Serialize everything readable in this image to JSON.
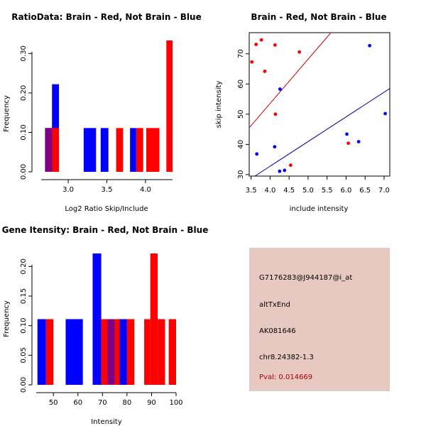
{
  "colors": {
    "red": "#ff0000",
    "blue": "#0000ff",
    "overlap": "#7f0080",
    "fit_red": "#cc0000",
    "fit_blue": "#000099",
    "info_bg": "#e7c9c2",
    "pval": "#aa0000"
  },
  "chart_data": [
    {
      "id": "ratio-hist",
      "type": "bar",
      "title": "RatioData: Brain - Red, Not Brain - Blue",
      "xlabel": "Log2 Ratio Skip/Include",
      "ylabel": "Frequency",
      "xlim": [
        2.65,
        4.35
      ],
      "ylim": [
        0,
        0.333
      ],
      "xticks": [
        "3.0",
        "3.5",
        "4.0"
      ],
      "xtick_values": [
        3.0,
        3.5,
        4.0
      ],
      "yticks": [
        "0.00",
        "0.10",
        "0.20",
        "0.30"
      ],
      "ytick_values": [
        0.0,
        0.1,
        0.2,
        0.3
      ],
      "series": [
        {
          "name": "Not Brain",
          "color": "blue",
          "bars": [
            {
              "x0": 2.7,
              "x1": 2.79,
              "value": 0.111
            },
            {
              "x0": 2.79,
              "x1": 2.88,
              "value": 0.222
            },
            {
              "x0": 3.2,
              "x1": 3.36,
              "value": 0.111
            },
            {
              "x0": 3.42,
              "x1": 3.52,
              "value": 0.111
            },
            {
              "x0": 3.8,
              "x1": 3.88,
              "value": 0.111
            }
          ]
        },
        {
          "name": "Brain",
          "color": "red",
          "bars": [
            {
              "x0": 2.79,
              "x1": 2.88,
              "value": 0.111
            },
            {
              "x0": 3.62,
              "x1": 3.71,
              "value": 0.111
            },
            {
              "x0": 3.88,
              "x1": 3.97,
              "value": 0.111
            },
            {
              "x0": 4.01,
              "x1": 4.18,
              "value": 0.111
            },
            {
              "x0": 4.27,
              "x1": 4.35,
              "value": 0.333
            }
          ]
        }
      ],
      "overlap_bars": [
        {
          "x0": 2.7,
          "x1": 2.79,
          "value": 0.111
        }
      ]
    },
    {
      "id": "scatter",
      "type": "scatter",
      "title": "Brain - Red, Not Brain - Blue",
      "xlabel": "include intensity",
      "ylabel": "skip intensity",
      "xlim": [
        3.45,
        7.15
      ],
      "ylim": [
        29.5,
        77
      ],
      "xticks": [
        "3.5",
        "4.0",
        "4.5",
        "5.0",
        "5.5",
        "6.0",
        "6.5",
        "7.0"
      ],
      "xtick_values": [
        3.5,
        4.0,
        4.5,
        5.0,
        5.5,
        6.0,
        6.5,
        7.0
      ],
      "yticks": [
        "30",
        "40",
        "50",
        "60",
        "70"
      ],
      "ytick_values": [
        30,
        40,
        50,
        60,
        70
      ],
      "series": [
        {
          "name": "Brain",
          "color": "red",
          "points": [
            [
              3.52,
              67.3
            ],
            [
              3.63,
              73.1
            ],
            [
              3.77,
              74.6
            ],
            [
              3.86,
              64.2
            ],
            [
              4.13,
              72.9
            ],
            [
              4.14,
              50.0
            ],
            [
              4.54,
              33.1
            ],
            [
              4.77,
              70.6
            ],
            [
              6.06,
              40.4
            ]
          ],
          "fit": [
            [
              3.45,
              45.5
            ],
            [
              5.6,
              77
            ]
          ]
        },
        {
          "name": "Not Brain",
          "color": "blue",
          "points": [
            [
              3.65,
              36.8
            ],
            [
              4.12,
              39.2
            ],
            [
              4.26,
              58.3
            ],
            [
              4.25,
              31.1
            ],
            [
              4.38,
              31.4
            ],
            [
              6.02,
              43.4
            ],
            [
              6.33,
              40.9
            ],
            [
              6.62,
              72.7
            ],
            [
              7.03,
              50.2
            ]
          ],
          "fit": [
            [
              3.6,
              29.5
            ],
            [
              7.15,
              58.5
            ]
          ]
        }
      ]
    },
    {
      "id": "intensity-hist",
      "type": "bar",
      "title": "Gene Itensity: Brain - Red, Not Brain - Blue",
      "xlabel": "Intensity",
      "ylabel": "Frequency",
      "xlim": [
        43,
        100
      ],
      "ylim": [
        0,
        0.222
      ],
      "xticks": [
        "50",
        "60",
        "70",
        "80",
        "90",
        "100"
      ],
      "xtick_values": [
        50,
        60,
        70,
        80,
        90,
        100
      ],
      "yticks": [
        "0.00",
        "0.05",
        "0.10",
        "0.15",
        "0.20"
      ],
      "ytick_values": [
        0.0,
        0.05,
        0.1,
        0.15,
        0.2
      ],
      "series": [
        {
          "name": "Not Brain",
          "color": "blue",
          "bars": [
            {
              "x0": 43.5,
              "x1": 47.0,
              "value": 0.111
            },
            {
              "x0": 55.0,
              "x1": 62.0,
              "value": 0.111
            },
            {
              "x0": 66.0,
              "x1": 69.5,
              "value": 0.222
            },
            {
              "x0": 72.0,
              "x1": 75.0,
              "value": 0.111
            },
            {
              "x0": 77.0,
              "x1": 80.0,
              "value": 0.111
            }
          ]
        },
        {
          "name": "Brain",
          "color": "red",
          "bars": [
            {
              "x0": 47.0,
              "x1": 50.0,
              "value": 0.111
            },
            {
              "x0": 69.5,
              "x1": 72.0,
              "value": 0.111
            },
            {
              "x0": 75.0,
              "x1": 77.0,
              "value": 0.111
            },
            {
              "x0": 80.0,
              "x1": 83.0,
              "value": 0.111
            },
            {
              "x0": 87.0,
              "x1": 89.5,
              "value": 0.111
            },
            {
              "x0": 89.5,
              "x1": 92.5,
              "value": 0.222
            },
            {
              "x0": 92.5,
              "x1": 95.5,
              "value": 0.111
            },
            {
              "x0": 97.0,
              "x1": 100.0,
              "value": 0.111
            }
          ]
        }
      ],
      "overlap_bars": [
        {
          "x0": 72.0,
          "x1": 75.0,
          "value": 0.111
        }
      ]
    }
  ],
  "info": {
    "probe_id": "G7176283@J944187@i_at",
    "event_type": "altTxEnd",
    "accession": "AK081646",
    "location": "chr8.24382-1.3",
    "pval": "Pval: 0.014669"
  }
}
